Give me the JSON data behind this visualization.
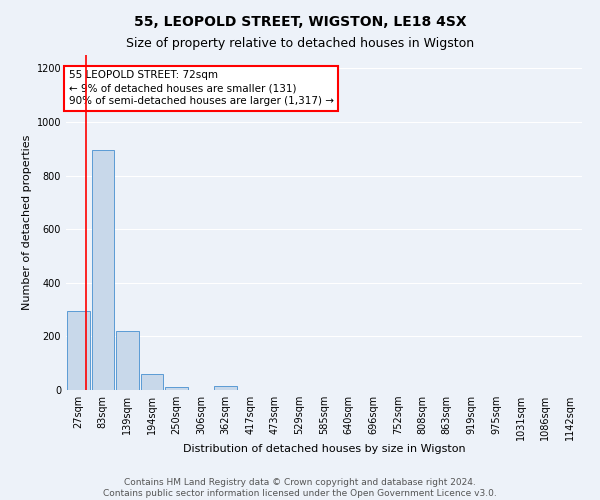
{
  "title": "55, LEOPOLD STREET, WIGSTON, LE18 4SX",
  "subtitle": "Size of property relative to detached houses in Wigston",
  "xlabel": "Distribution of detached houses by size in Wigston",
  "ylabel": "Number of detached properties",
  "categories": [
    "27sqm",
    "83sqm",
    "139sqm",
    "194sqm",
    "250sqm",
    "306sqm",
    "362sqm",
    "417sqm",
    "473sqm",
    "529sqm",
    "585sqm",
    "640sqm",
    "696sqm",
    "752sqm",
    "808sqm",
    "863sqm",
    "919sqm",
    "975sqm",
    "1031sqm",
    "1086sqm",
    "1142sqm"
  ],
  "values": [
    295,
    895,
    220,
    58,
    12,
    0,
    15,
    0,
    0,
    0,
    0,
    0,
    0,
    0,
    0,
    0,
    0,
    0,
    0,
    0,
    0
  ],
  "bar_color": "#c8d8ea",
  "bar_edge_color": "#5b9bd5",
  "annotation_text": "55 LEOPOLD STREET: 72sqm\n← 9% of detached houses are smaller (131)\n90% of semi-detached houses are larger (1,317) →",
  "ylim": [
    0,
    1250
  ],
  "yticks": [
    0,
    200,
    400,
    600,
    800,
    1000,
    1200
  ],
  "footer": "Contains HM Land Registry data © Crown copyright and database right 2024.\nContains public sector information licensed under the Open Government Licence v3.0.",
  "background_color": "#edf2f9",
  "grid_color": "#ffffff",
  "title_fontsize": 10,
  "subtitle_fontsize": 9,
  "axis_label_fontsize": 8,
  "tick_fontsize": 7,
  "annot_fontsize": 7.5,
  "footer_fontsize": 6.5
}
